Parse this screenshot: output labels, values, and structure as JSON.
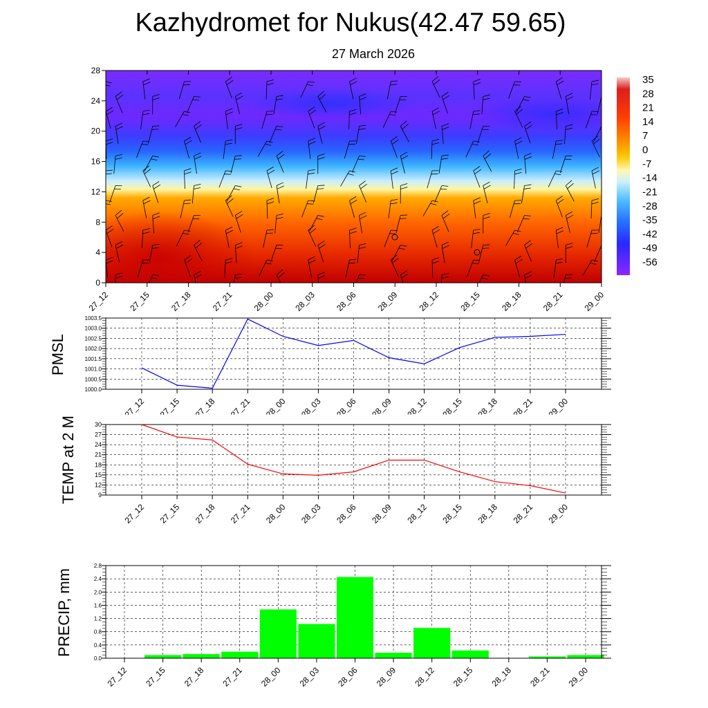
{
  "header": {
    "title": "Kazhydromet for Nukus(42.47 59.65)",
    "date": "27 March 2026"
  },
  "chart_data": [
    {
      "type": "heatmap",
      "description_kind": "time-height cross section with wind barbs",
      "x_tick_labels": [
        "27_12",
        "27_15",
        "27_18",
        "27_21",
        "28_00",
        "28_03",
        "28_06",
        "28_09",
        "28_12",
        "28_15",
        "28_18",
        "28_21",
        "29_00"
      ],
      "y_ticks": [
        0,
        4,
        8,
        12,
        16,
        20,
        24,
        28
      ],
      "ylim": [
        0,
        28
      ],
      "colorbar_labels": [
        "35",
        "28",
        "21",
        "14",
        "7",
        "0",
        "-7",
        "-14",
        "-21",
        "-28",
        "-35",
        "-42",
        "-49",
        "-56"
      ],
      "value_range": [
        -60,
        38
      ],
      "colors": {
        "hot": "#c80000",
        "warm": "#ff5a00",
        "mid": "#ffaa00",
        "neutral": "#fff5a0",
        "cool": "#3cb4ff",
        "cold": "#3c50ff",
        "coldest": "#7b2bff",
        "barb": "#000000"
      }
    },
    {
      "type": "line",
      "ylabel": "PMSL",
      "x": [
        "27_12",
        "27_15",
        "27_18",
        "27_21",
        "28_00",
        "28_03",
        "28_06",
        "28_09",
        "28_12",
        "28_15",
        "28_18",
        "28_21",
        "29_00"
      ],
      "ylim": [
        1000.0,
        1003.5
      ],
      "y_tick_labels": [
        "1000.0",
        "1000.5",
        "1001.0",
        "1001.5",
        "1002.0",
        "1002.5",
        "1003.0",
        "1003.5"
      ],
      "series": [
        {
          "color": "#0000ff",
          "values": [
            1001.05,
            1000.2,
            1000.05,
            1003.45,
            1002.6,
            1002.15,
            1002.4,
            1001.55,
            1001.25,
            1002.05,
            1002.55,
            1002.6,
            1002.7
          ]
        }
      ],
      "grid": true
    },
    {
      "type": "line",
      "ylabel": "TEMP at 2 M",
      "x": [
        "27_12",
        "27_15",
        "27_18",
        "27_21",
        "28_00",
        "28_03",
        "28_06",
        "28_09",
        "28_12",
        "28_15",
        "28_18",
        "28_21",
        "29_00"
      ],
      "ylim": [
        9,
        30
      ],
      "y_tick_labels": [
        "9",
        "12",
        "15",
        "18",
        "21",
        "24",
        "27",
        "30"
      ],
      "series": [
        {
          "color": "#ff0000",
          "values": [
            30.0,
            26.3,
            25.4,
            18.2,
            15.3,
            14.9,
            15.9,
            19.4,
            19.4,
            15.9,
            13.0,
            11.8,
            9.6
          ]
        }
      ],
      "grid": true
    },
    {
      "type": "bar",
      "ylabel": "PRECIP, mm",
      "categories": [
        "27_12",
        "27_15",
        "27_18",
        "27_21",
        "28_00",
        "28_03",
        "28_06",
        "28_09",
        "28_12",
        "28_15",
        "28_18",
        "28_21",
        "29_00"
      ],
      "values": [
        0.0,
        0.1,
        0.13,
        0.2,
        1.48,
        1.04,
        2.46,
        0.17,
        0.92,
        0.24,
        0.0,
        0.06,
        0.1
      ],
      "ylim": [
        0,
        2.8
      ],
      "y_tick_labels": [
        "0.0",
        "0.4",
        "0.8",
        "1.2",
        "1.6",
        "2.0",
        "2.4",
        "2.8"
      ],
      "bar_color": "#00ff00",
      "grid": true
    }
  ]
}
